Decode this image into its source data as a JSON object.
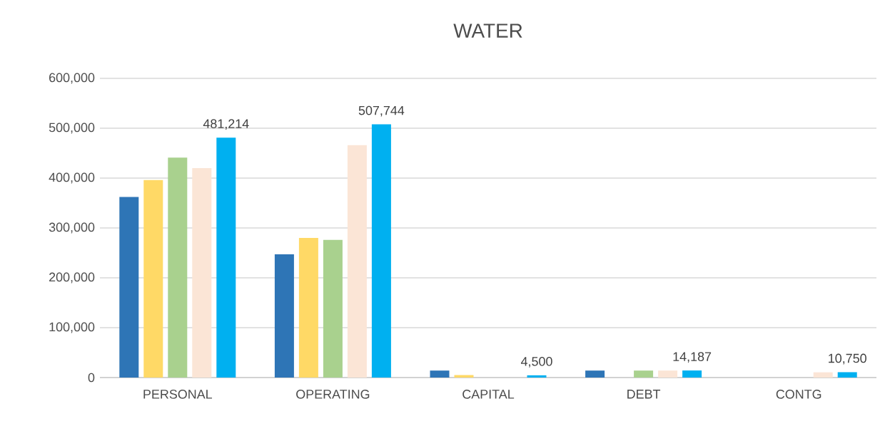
{
  "chart_data": {
    "type": "bar",
    "title": "WATER",
    "categories": [
      "PERSONAL",
      "OPERATING",
      "CAPITAL",
      "DEBT",
      "CONTG"
    ],
    "series": [
      {
        "color": "#2e75b6",
        "values": [
          362000,
          247000,
          14000,
          14000,
          null
        ]
      },
      {
        "color": "#ffd966",
        "values": [
          396000,
          280000,
          5000,
          null,
          null
        ]
      },
      {
        "color": "#a9d18e",
        "values": [
          441000,
          276000,
          null,
          14000,
          null
        ]
      },
      {
        "color": "#fbe5d6",
        "values": [
          420000,
          466000,
          null,
          14000,
          10500
        ]
      },
      {
        "color": "#00b0f0",
        "values": [
          481214,
          507744,
          4500,
          14187,
          10750
        ],
        "value_labels": [
          "481,214",
          "507,744",
          "4,500",
          "14,187",
          "10,750"
        ]
      }
    ],
    "ylim": [
      0,
      600000
    ],
    "yticks": [
      {
        "value": 0,
        "label": "0"
      },
      {
        "value": 100000,
        "label": "100,000"
      },
      {
        "value": 200000,
        "label": "200,000"
      },
      {
        "value": 300000,
        "label": "300,000"
      },
      {
        "value": 400000,
        "label": "400,000"
      },
      {
        "value": 500000,
        "label": "500,000"
      },
      {
        "value": 600000,
        "label": "600,000"
      }
    ],
    "grid": "y"
  }
}
